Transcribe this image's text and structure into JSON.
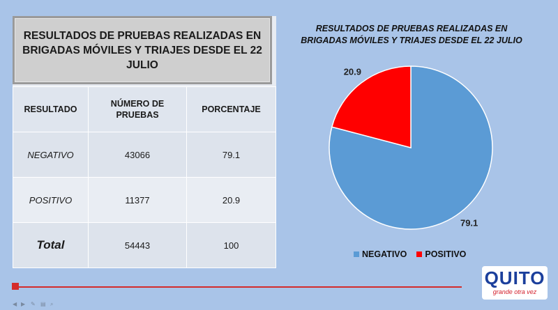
{
  "table": {
    "title": "RESULTADOS DE PRUEBAS REALIZADAS EN BRIGADAS MÓVILES Y TRIAJES DESDE EL 22 JULIO",
    "headers": [
      "RESULTADO",
      "NÚMERO DE PRUEBAS",
      "PORCENTAJE"
    ],
    "rows": [
      {
        "resultado": "NEGATIVO",
        "numero": "43066",
        "porcentaje": "79.1"
      },
      {
        "resultado": "POSITIVO",
        "numero": "11377",
        "porcentaje": "20.9"
      }
    ],
    "total": {
      "label": "Total",
      "numero": "54443",
      "porcentaje": "100"
    }
  },
  "chart_data": {
    "type": "pie",
    "title": "RESULTADOS DE PRUEBAS REALIZADAS EN BRIGADAS MÓVILES Y TRIAJES DESDE EL 22 JULIO",
    "categories": [
      "NEGATIVO",
      "POSITIVO"
    ],
    "values": [
      79.1,
      20.9
    ],
    "data_labels": [
      "79.1",
      "20.9"
    ],
    "colors": [
      "#5b9bd5",
      "#ff0000"
    ],
    "legend_position": "bottom"
  },
  "logo": {
    "text": "QUITO",
    "tagline": "grande otra vez"
  },
  "colors": {
    "background": "#a9c4e8",
    "progress": "#d42b2b"
  }
}
